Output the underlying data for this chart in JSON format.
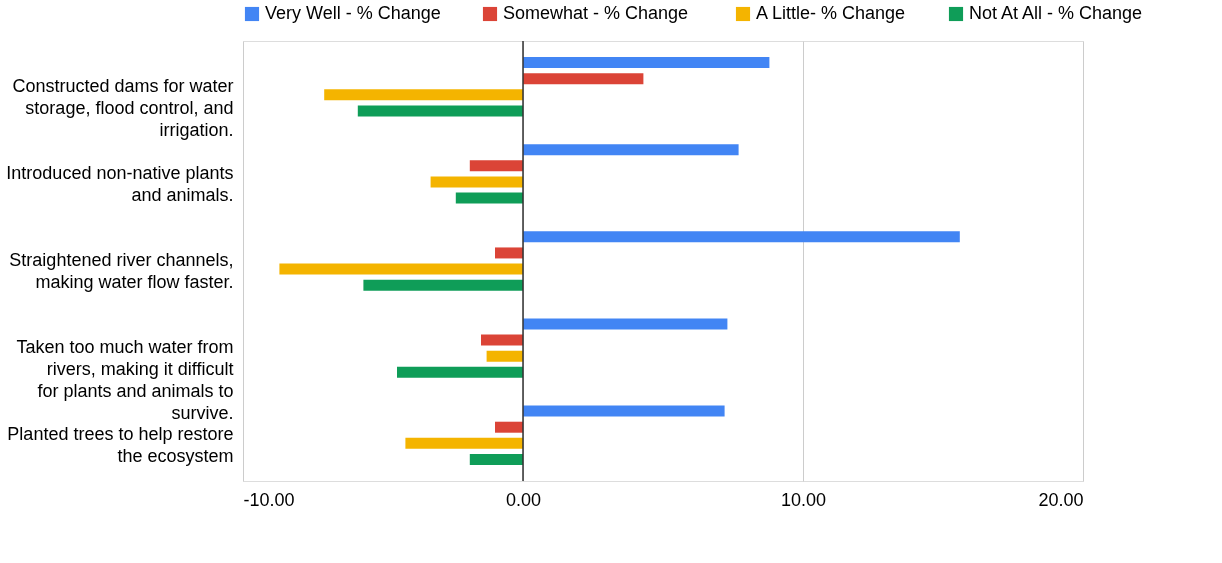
{
  "chart_data": {
    "type": "bar",
    "orientation": "horizontal",
    "categories": [
      "Constructed dams for water storage, flood control, and irrigation.",
      "Introduced non-native plants and animals.",
      "Straightened river channels, making water flow faster.",
      "Taken too much water from rivers, making it difficult for plants and animals to survive.",
      "Planted trees to help restore the ecosystem"
    ],
    "series": [
      {
        "name": "Very Well - % Change",
        "color": "#4285f4",
        "values": [
          8.8,
          7.7,
          15.6,
          7.3,
          7.2
        ]
      },
      {
        "name": "Somewhat  - % Change",
        "color": "#db4437",
        "values": [
          4.3,
          -1.9,
          -1.0,
          -1.5,
          -1.0
        ]
      },
      {
        "name": "A Little- % Change",
        "color": "#f4b400",
        "values": [
          -7.1,
          -3.3,
          -8.7,
          -1.3,
          -4.2
        ]
      },
      {
        "name": "Not At All - % Change",
        "color": "#0f9d58",
        "values": [
          -5.9,
          -2.4,
          -5.7,
          -4.5,
          -1.9
        ]
      }
    ],
    "xlim": [
      -10,
      20
    ],
    "xticks": [
      {
        "value": -10,
        "label": "-10.00"
      },
      {
        "value": 0,
        "label": "0.00"
      },
      {
        "value": 10,
        "label": "10.00"
      },
      {
        "value": 20,
        "label": "20.00"
      }
    ],
    "ref_lines": [
      {
        "axis": "x",
        "value": 0,
        "color": "#333333"
      }
    ],
    "grid": "x",
    "legend": "top"
  }
}
